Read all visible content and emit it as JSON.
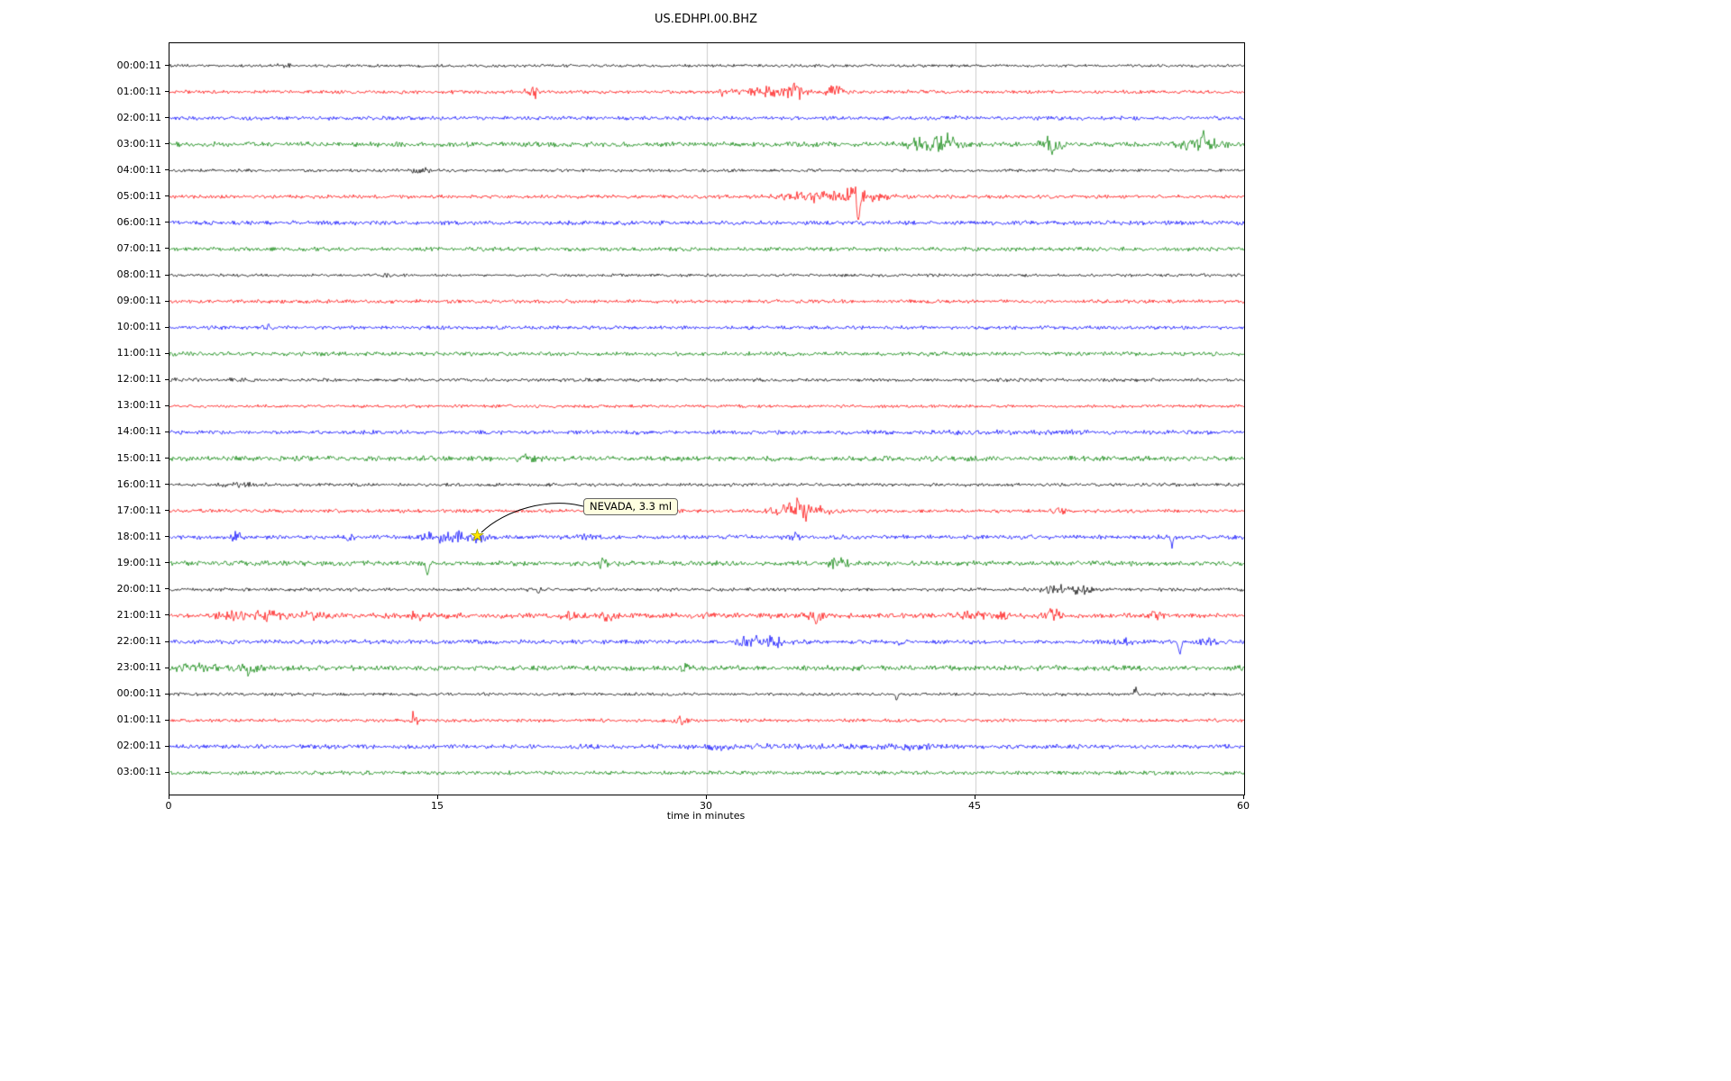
{
  "title": "US.EDHPI.00.BHZ",
  "annotation": {
    "text": "NEVADA, 3.3 ml"
  },
  "chart_data": {
    "type": "line",
    "title": "US.EDHPI.00.BHZ",
    "xlabel": "time in minutes",
    "ylabel": "",
    "xlim": [
      0,
      60
    ],
    "x_ticks": [
      0,
      15,
      30,
      45,
      60
    ],
    "x_gridlines": [
      15,
      30,
      45
    ],
    "grid": true,
    "legend": "none",
    "trace_color_cycle": [
      "#000000",
      "#ff0000",
      "#0000ff",
      "#008000"
    ],
    "event_marker": {
      "symbol": "star",
      "color": "#ffe600",
      "row_index": 18,
      "row_label": "18:00:11",
      "x_minutes": 17.2,
      "label": "NEVADA, 3.3 ml"
    },
    "rows": [
      {
        "label": "00:00:11",
        "color": "#000000",
        "amp": 1.2,
        "events": [
          {
            "t": "b",
            "x": 6.5,
            "w": 0.3,
            "a": 1.3
          }
        ]
      },
      {
        "label": "01:00:11",
        "color": "#ff0000",
        "amp": 1.5,
        "events": [
          {
            "t": "b",
            "x": 20.3,
            "w": 0.25,
            "a": 5
          },
          {
            "t": "b",
            "x": 31,
            "w": 0.3,
            "a": 2.2
          },
          {
            "t": "b",
            "x": 34,
            "w": 1.3,
            "a": 4
          },
          {
            "t": "b",
            "x": 35,
            "w": 0.2,
            "a": 3
          },
          {
            "t": "b",
            "x": 37.2,
            "w": 0.3,
            "a": 4.5
          }
        ]
      },
      {
        "label": "02:00:11",
        "color": "#0000ff",
        "amp": 1.6,
        "events": [
          {
            "t": "b",
            "x": 44,
            "w": 0.3,
            "a": 1.2
          }
        ]
      },
      {
        "label": "03:00:11",
        "color": "#008000",
        "amp": 2.0,
        "events": [
          {
            "t": "b",
            "x": 42.5,
            "w": 0.8,
            "a": 6
          },
          {
            "t": "b",
            "x": 43.4,
            "w": 0.4,
            "a": 4
          },
          {
            "t": "b",
            "x": 49.3,
            "w": 0.5,
            "a": 5
          },
          {
            "t": "s",
            "x": 49.3,
            "w": 0.07,
            "a": -13
          },
          {
            "t": "b",
            "x": 57.6,
            "w": 0.8,
            "a": 4
          },
          {
            "t": "s",
            "x": 57.7,
            "w": 0.07,
            "a": 11
          }
        ]
      },
      {
        "label": "04:00:11",
        "color": "#000000",
        "amp": 1.3,
        "events": [
          {
            "t": "b",
            "x": 14,
            "w": 0.4,
            "a": 2
          }
        ]
      },
      {
        "label": "05:00:11",
        "color": "#ff0000",
        "amp": 1.5,
        "events": [
          {
            "t": "b",
            "x": 36,
            "w": 1.2,
            "a": 4
          },
          {
            "t": "b",
            "x": 38.3,
            "w": 0.5,
            "a": 6
          },
          {
            "t": "s",
            "x": 38.45,
            "w": 0.08,
            "a": -26
          },
          {
            "t": "s",
            "x": 38.3,
            "w": 0.06,
            "a": 17
          },
          {
            "t": "b",
            "x": 39.5,
            "w": 0.8,
            "a": 2
          }
        ]
      },
      {
        "label": "06:00:11",
        "color": "#0000ff",
        "amp": 1.8,
        "events": []
      },
      {
        "label": "07:00:11",
        "color": "#008000",
        "amp": 1.7,
        "events": []
      },
      {
        "label": "08:00:11",
        "color": "#000000",
        "amp": 1.2,
        "events": [
          {
            "t": "b",
            "x": 12,
            "w": 0.4,
            "a": 1.2
          }
        ]
      },
      {
        "label": "09:00:11",
        "color": "#ff0000",
        "amp": 1.5,
        "events": []
      },
      {
        "label": "10:00:11",
        "color": "#0000ff",
        "amp": 1.5,
        "events": [
          {
            "t": "b",
            "x": 5.5,
            "w": 0.2,
            "a": 2.2
          }
        ]
      },
      {
        "label": "11:00:11",
        "color": "#008000",
        "amp": 1.7,
        "events": []
      },
      {
        "label": "12:00:11",
        "color": "#000000",
        "amp": 1.4,
        "events": [
          {
            "t": "b",
            "x": 2,
            "w": 1.5,
            "a": 0.6
          }
        ]
      },
      {
        "label": "13:00:11",
        "color": "#ff0000",
        "amp": 1.3,
        "events": []
      },
      {
        "label": "14:00:11",
        "color": "#0000ff",
        "amp": 1.7,
        "events": [
          {
            "t": "b",
            "x": 47,
            "w": 3,
            "a": 0.7
          }
        ]
      },
      {
        "label": "15:00:11",
        "color": "#008000",
        "amp": 2.1,
        "events": [
          {
            "t": "b",
            "x": 20,
            "w": 0.4,
            "a": 1.4
          }
        ]
      },
      {
        "label": "16:00:11",
        "color": "#000000",
        "amp": 1.4,
        "events": [
          {
            "t": "b",
            "x": 4,
            "w": 0.8,
            "a": 1.2
          }
        ]
      },
      {
        "label": "17:00:11",
        "color": "#ff0000",
        "amp": 1.5,
        "events": [
          {
            "t": "b",
            "x": 35.3,
            "w": 0.9,
            "a": 8
          },
          {
            "t": "s",
            "x": 35.1,
            "w": 0.06,
            "a": 10
          },
          {
            "t": "b",
            "x": 49.7,
            "w": 0.3,
            "a": 3.5
          }
        ]
      },
      {
        "label": "18:00:11",
        "color": "#0000ff",
        "amp": 1.8,
        "events": [
          {
            "t": "b",
            "x": 3.7,
            "w": 0.2,
            "a": 4
          },
          {
            "t": "b",
            "x": 10,
            "w": 0.2,
            "a": 2.5
          },
          {
            "t": "b",
            "x": 14.8,
            "w": 0.5,
            "a": 3.5
          },
          {
            "t": "b",
            "x": 16.2,
            "w": 0.4,
            "a": 4
          },
          {
            "t": "b",
            "x": 17.3,
            "w": 0.3,
            "a": 3
          },
          {
            "t": "b",
            "x": 23.3,
            "w": 0.2,
            "a": 3
          },
          {
            "t": "b",
            "x": 34.8,
            "w": 0.3,
            "a": 3
          },
          {
            "t": "s",
            "x": 56,
            "w": 0.07,
            "a": -8
          },
          {
            "t": "b",
            "x": 56,
            "w": 0.2,
            "a": 2
          }
        ]
      },
      {
        "label": "19:00:11",
        "color": "#008000",
        "amp": 2.0,
        "events": [
          {
            "t": "s",
            "x": 14.4,
            "w": 0.07,
            "a": -13
          },
          {
            "t": "b",
            "x": 24.2,
            "w": 0.3,
            "a": 3
          },
          {
            "t": "b",
            "x": 37.3,
            "w": 0.4,
            "a": 4.5
          }
        ]
      },
      {
        "label": "20:00:11",
        "color": "#000000",
        "amp": 1.4,
        "events": [
          {
            "t": "b",
            "x": 20.5,
            "w": 0.3,
            "a": 1.5
          },
          {
            "t": "b",
            "x": 49.7,
            "w": 0.8,
            "a": 2.5
          },
          {
            "t": "b",
            "x": 51,
            "w": 0.4,
            "a": 2
          }
        ]
      },
      {
        "label": "21:00:11",
        "color": "#ff0000",
        "amp": 2.2,
        "events": [
          {
            "t": "b",
            "x": 3.5,
            "w": 0.5,
            "a": 3
          },
          {
            "t": "b",
            "x": 5.5,
            "w": 0.6,
            "a": 3.5
          },
          {
            "t": "b",
            "x": 8,
            "w": 0.5,
            "a": 3
          },
          {
            "t": "b",
            "x": 13.8,
            "w": 0.3,
            "a": 3
          },
          {
            "t": "b",
            "x": 22.4,
            "w": 0.3,
            "a": 4
          },
          {
            "t": "b",
            "x": 24.6,
            "w": 0.3,
            "a": 3
          },
          {
            "t": "b",
            "x": 30,
            "w": 0.3,
            "a": 3
          },
          {
            "t": "s",
            "x": 36.1,
            "w": 0.07,
            "a": -11
          },
          {
            "t": "b",
            "x": 36.1,
            "w": 0.3,
            "a": 4
          },
          {
            "t": "b",
            "x": 44.8,
            "w": 0.6,
            "a": 3
          },
          {
            "t": "b",
            "x": 46.5,
            "w": 0.4,
            "a": 3
          },
          {
            "t": "b",
            "x": 49.2,
            "w": 0.4,
            "a": 4
          },
          {
            "t": "b",
            "x": 55,
            "w": 0.3,
            "a": 2.5
          }
        ]
      },
      {
        "label": "22:00:11",
        "color": "#0000ff",
        "amp": 1.8,
        "events": [
          {
            "t": "b",
            "x": 32.6,
            "w": 0.5,
            "a": 5
          },
          {
            "t": "b",
            "x": 33.8,
            "w": 0.4,
            "a": 4
          },
          {
            "t": "b",
            "x": 40.8,
            "w": 0.3,
            "a": 2
          },
          {
            "t": "b",
            "x": 53.5,
            "w": 0.4,
            "a": 3
          },
          {
            "t": "s",
            "x": 56.4,
            "w": 0.07,
            "a": -12
          },
          {
            "t": "b",
            "x": 58,
            "w": 0.3,
            "a": 2.5
          }
        ]
      },
      {
        "label": "23:00:11",
        "color": "#008000",
        "amp": 2.1,
        "events": [
          {
            "t": "b",
            "x": 1.5,
            "w": 0.8,
            "a": 3
          },
          {
            "t": "b",
            "x": 4.5,
            "w": 0.6,
            "a": 4
          },
          {
            "t": "s",
            "x": 4.4,
            "w": 0.07,
            "a": -9
          },
          {
            "t": "b",
            "x": 28.7,
            "w": 0.3,
            "a": 3
          }
        ]
      },
      {
        "label": "00:00:11",
        "color": "#000000",
        "amp": 1.3,
        "events": [
          {
            "t": "s",
            "x": 40.6,
            "w": 0.06,
            "a": -6
          },
          {
            "t": "b",
            "x": 54,
            "w": 0.15,
            "a": 3
          },
          {
            "t": "s",
            "x": 53.9,
            "w": 0.06,
            "a": 5
          }
        ]
      },
      {
        "label": "01:00:11",
        "color": "#ff0000",
        "amp": 1.4,
        "events": [
          {
            "t": "b",
            "x": 13.6,
            "w": 0.2,
            "a": 4
          },
          {
            "t": "s",
            "x": 13.6,
            "w": 0.06,
            "a": 6
          },
          {
            "t": "b",
            "x": 28.4,
            "w": 0.3,
            "a": 2.5
          }
        ]
      },
      {
        "label": "02:00:11",
        "color": "#0000ff",
        "amp": 1.8,
        "events": [
          {
            "t": "b",
            "x": 35,
            "w": 6,
            "a": 0.8
          },
          {
            "t": "b",
            "x": 30.5,
            "w": 0.4,
            "a": 2
          },
          {
            "t": "b",
            "x": 41.5,
            "w": 0.4,
            "a": 2
          }
        ]
      },
      {
        "label": "03:00:11",
        "color": "#008000",
        "amp": 1.6,
        "events": []
      }
    ]
  }
}
